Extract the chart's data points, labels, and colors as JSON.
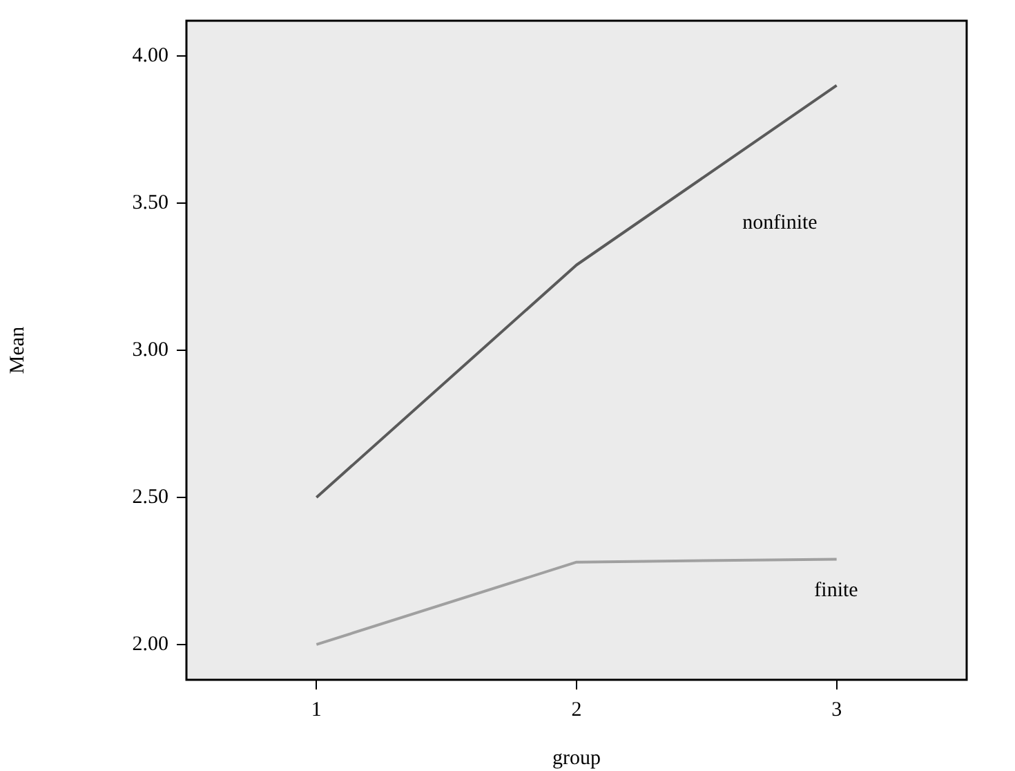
{
  "chart_data": {
    "type": "line",
    "xlabel": "group",
    "ylabel": "Mean",
    "categories": [
      "1",
      "2",
      "3"
    ],
    "series": [
      {
        "name": "nonfinite",
        "color": "#5a5a5a",
        "values": [
          2.5,
          3.29,
          3.9
        ]
      },
      {
        "name": "finite",
        "color": "#a0a0a0",
        "values": [
          2.0,
          2.28,
          2.29
        ]
      }
    ],
    "ylim": [
      1.88,
      4.12
    ],
    "yticks": [
      {
        "value": 2,
        "label": "2.00"
      },
      {
        "value": 2.5,
        "label": "2.50"
      },
      {
        "value": 3,
        "label": "3.00"
      },
      {
        "value": 3.5,
        "label": "3.50"
      },
      {
        "value": 4,
        "label": "4.00"
      }
    ],
    "grid": false,
    "legend": false,
    "marker": "none",
    "line_style": "solid"
  }
}
